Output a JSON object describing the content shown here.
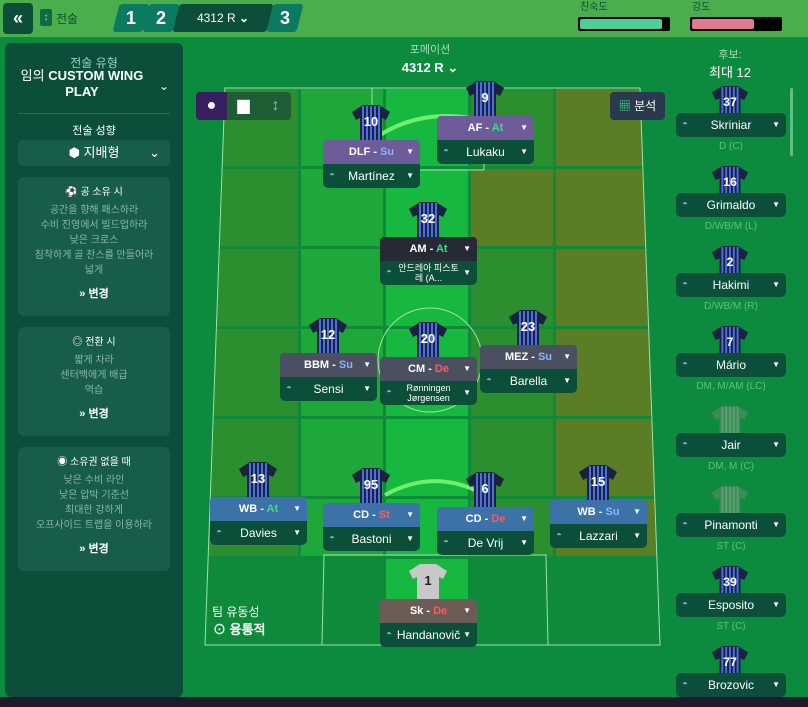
{
  "topbar": {
    "back": "«",
    "tactics_label": "전술",
    "slot1": "1",
    "slot2": "2",
    "formation_slot": "4312 R",
    "slot3": "3",
    "familiarity_label": "친숙도",
    "familiarity_value": 0.93,
    "intensity_label": "강도",
    "intensity_value": 0.71,
    "colors": {
      "familiarity": "#4ecf9a",
      "intensity": "#e07a90"
    }
  },
  "left": {
    "type_label": "전술 유형",
    "type_prefix": "임의",
    "type_name": "CUSTOM WING PLAY",
    "mentality_label": "전술 성향",
    "mentality": "지배형",
    "in_possession": {
      "title": "공 소유 시",
      "items": [
        "공간을 향해 패스하라",
        "수비 진영에서 빌드업하라",
        "낮은 크로스",
        "침착하게 골 찬스를 만들어라",
        "넓게"
      ],
      "change": "변경"
    },
    "transition": {
      "title": "전환 시",
      "items": [
        "짧게 차라",
        "센터백에게 배급",
        "역습"
      ],
      "change": "변경"
    },
    "out_possession": {
      "title": "소유권 없을 때",
      "items": [
        "낮은 수비 라인",
        "낮은 압박 기준선",
        "최대한 강하게",
        "오프사이드 트랩을 이용하라"
      ],
      "change": "변경"
    }
  },
  "formation": {
    "label": "포메이션",
    "value": "4312 R",
    "analysis": "분석"
  },
  "fluidity": {
    "label": "팀 유동성",
    "value": "융통적"
  },
  "players": [
    {
      "num": "10",
      "role": "DLF",
      "duty": "Su",
      "name": "Martínez"
    },
    {
      "num": "9",
      "role": "AF",
      "duty": "At",
      "name": "Lukaku"
    },
    {
      "num": "32",
      "role": "AM",
      "duty": "At",
      "name": "안드레아 피스토레 (A..."
    },
    {
      "num": "12",
      "role": "BBM",
      "duty": "Su",
      "name": "Sensi"
    },
    {
      "num": "20",
      "role": "CM",
      "duty": "De",
      "name": "Rønningen Jørgensen"
    },
    {
      "num": "23",
      "role": "MEZ",
      "duty": "Su",
      "name": "Barella"
    },
    {
      "num": "13",
      "role": "WB",
      "duty": "At",
      "name": "Davies"
    },
    {
      "num": "95",
      "role": "CD",
      "duty": "St",
      "name": "Bastoni"
    },
    {
      "num": "6",
      "role": "CD",
      "duty": "De",
      "name": "De Vrij"
    },
    {
      "num": "15",
      "role": "WB",
      "duty": "Su",
      "name": "Lazzari"
    },
    {
      "num": "1",
      "role": "Sk",
      "duty": "De",
      "name": "Handanovič"
    }
  ],
  "bench": {
    "label": "후보:",
    "max": "최대 12",
    "players": [
      {
        "num": "37",
        "name": "Skriniar",
        "pos": "D (C)"
      },
      {
        "num": "16",
        "name": "Grimaldo",
        "pos": "D/WB/M (L)"
      },
      {
        "num": "2",
        "name": "Hakimi",
        "pos": "D/WB/M (R)"
      },
      {
        "num": "7",
        "name": "Mário",
        "pos": "DM, M/AM (LC)"
      },
      {
        "num": "",
        "name": "Jair",
        "pos": "DM, M (C)"
      },
      {
        "num": "",
        "name": "Pinamonti",
        "pos": "ST (C)"
      },
      {
        "num": "39",
        "name": "Esposito",
        "pos": "ST (C)"
      },
      {
        "num": "77",
        "name": "Brozovic",
        "pos": ""
      }
    ]
  },
  "colors": {
    "forward_role": "#6e5c9a",
    "am_role": "#262a35",
    "mid_role": "#4b5060",
    "def_role": "#3d72a8",
    "gk_role": "#6b5c55"
  }
}
